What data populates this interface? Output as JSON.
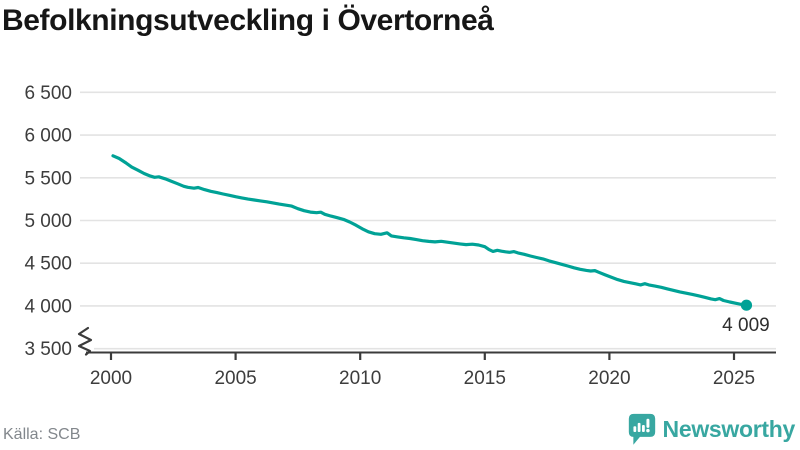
{
  "title": "Befolkningsutveckling i Övertorneå",
  "footer": {
    "source": "Källa: SCB",
    "brand": "Newsworthy"
  },
  "colors": {
    "line": "#00a296",
    "brand": "#38a7a1",
    "grid": "#e3e3e3",
    "axis": "#3b3b3b",
    "tick_label": "#3d3d3d",
    "end_label": "#2e2e2e",
    "title": "#161616",
    "source": "#82878c"
  },
  "chart_data": {
    "type": "line",
    "title": "Befolkningsutveckling i Övertorneå",
    "xlabel": "",
    "ylabel": "",
    "source": "Källa: SCB",
    "grid": true,
    "axis_break_at_bottom": true,
    "xlim": [
      1998.8,
      2026.7
    ],
    "ylim": [
      3500,
      6500
    ],
    "x_ticks": [
      2000,
      2005,
      2010,
      2015,
      2020,
      2025
    ],
    "x_tick_labels": [
      "2000",
      "2005",
      "2010",
      "2015",
      "2020",
      "2025"
    ],
    "y_ticks": [
      3500,
      4000,
      4500,
      5000,
      5500,
      6000,
      6500
    ],
    "y_tick_labels": [
      "3 500",
      "4 000",
      "4 500",
      "5 000",
      "5 500",
      "6 000",
      "6 500"
    ],
    "end_label": "4 009",
    "end_value": 4009,
    "line_color": "#00a296",
    "series": [
      {
        "name": "Folkmängd (månadsdata)",
        "points": [
          [
            2000.08,
            5757
          ],
          [
            2000.33,
            5725
          ],
          [
            2000.58,
            5678
          ],
          [
            2000.83,
            5625
          ],
          [
            2001.08,
            5588
          ],
          [
            2001.33,
            5550
          ],
          [
            2001.58,
            5520
          ],
          [
            2001.75,
            5505
          ],
          [
            2001.92,
            5511
          ],
          [
            2002.17,
            5488
          ],
          [
            2002.42,
            5460
          ],
          [
            2002.67,
            5430
          ],
          [
            2002.92,
            5400
          ],
          [
            2003.08,
            5388
          ],
          [
            2003.33,
            5378
          ],
          [
            2003.5,
            5386
          ],
          [
            2003.75,
            5362
          ],
          [
            2004.0,
            5342
          ],
          [
            2004.25,
            5326
          ],
          [
            2004.5,
            5310
          ],
          [
            2004.75,
            5295
          ],
          [
            2005.0,
            5278
          ],
          [
            2005.25,
            5264
          ],
          [
            2005.5,
            5250
          ],
          [
            2005.75,
            5240
          ],
          [
            2006.0,
            5229
          ],
          [
            2006.25,
            5219
          ],
          [
            2006.5,
            5206
          ],
          [
            2006.75,
            5192
          ],
          [
            2007.0,
            5180
          ],
          [
            2007.25,
            5168
          ],
          [
            2007.5,
            5138
          ],
          [
            2007.75,
            5115
          ],
          [
            2008.0,
            5098
          ],
          [
            2008.25,
            5091
          ],
          [
            2008.42,
            5097
          ],
          [
            2008.58,
            5073
          ],
          [
            2008.83,
            5052
          ],
          [
            2009.08,
            5033
          ],
          [
            2009.33,
            5013
          ],
          [
            2009.58,
            4982
          ],
          [
            2009.83,
            4945
          ],
          [
            2010.08,
            4903
          ],
          [
            2010.33,
            4868
          ],
          [
            2010.58,
            4846
          ],
          [
            2010.83,
            4838
          ],
          [
            2011.08,
            4856
          ],
          [
            2011.25,
            4820
          ],
          [
            2011.5,
            4808
          ],
          [
            2011.75,
            4798
          ],
          [
            2012.0,
            4789
          ],
          [
            2012.25,
            4777
          ],
          [
            2012.5,
            4764
          ],
          [
            2012.75,
            4756
          ],
          [
            2013.0,
            4750
          ],
          [
            2013.25,
            4757
          ],
          [
            2013.5,
            4746
          ],
          [
            2013.75,
            4736
          ],
          [
            2014.0,
            4726
          ],
          [
            2014.25,
            4718
          ],
          [
            2014.5,
            4723
          ],
          [
            2014.75,
            4713
          ],
          [
            2015.0,
            4694
          ],
          [
            2015.17,
            4660
          ],
          [
            2015.33,
            4638
          ],
          [
            2015.5,
            4651
          ],
          [
            2015.67,
            4641
          ],
          [
            2015.83,
            4634
          ],
          [
            2016.0,
            4628
          ],
          [
            2016.17,
            4636
          ],
          [
            2016.33,
            4621
          ],
          [
            2016.58,
            4604
          ],
          [
            2016.83,
            4585
          ],
          [
            2017.08,
            4567
          ],
          [
            2017.33,
            4551
          ],
          [
            2017.58,
            4527
          ],
          [
            2017.83,
            4507
          ],
          [
            2018.08,
            4488
          ],
          [
            2018.33,
            4468
          ],
          [
            2018.58,
            4447
          ],
          [
            2018.83,
            4429
          ],
          [
            2019.08,
            4416
          ],
          [
            2019.25,
            4409
          ],
          [
            2019.42,
            4414
          ],
          [
            2019.58,
            4394
          ],
          [
            2019.83,
            4364
          ],
          [
            2020.08,
            4335
          ],
          [
            2020.33,
            4308
          ],
          [
            2020.58,
            4288
          ],
          [
            2020.83,
            4272
          ],
          [
            2021.08,
            4258
          ],
          [
            2021.25,
            4247
          ],
          [
            2021.42,
            4260
          ],
          [
            2021.58,
            4247
          ],
          [
            2021.83,
            4233
          ],
          [
            2022.08,
            4218
          ],
          [
            2022.33,
            4200
          ],
          [
            2022.58,
            4182
          ],
          [
            2022.83,
            4165
          ],
          [
            2023.08,
            4149
          ],
          [
            2023.33,
            4135
          ],
          [
            2023.58,
            4119
          ],
          [
            2023.83,
            4101
          ],
          [
            2024.08,
            4083
          ],
          [
            2024.25,
            4073
          ],
          [
            2024.42,
            4086
          ],
          [
            2024.58,
            4064
          ],
          [
            2024.83,
            4046
          ],
          [
            2025.08,
            4031
          ],
          [
            2025.25,
            4021
          ],
          [
            2025.42,
            4012
          ],
          [
            2025.5,
            4009
          ]
        ]
      }
    ]
  }
}
